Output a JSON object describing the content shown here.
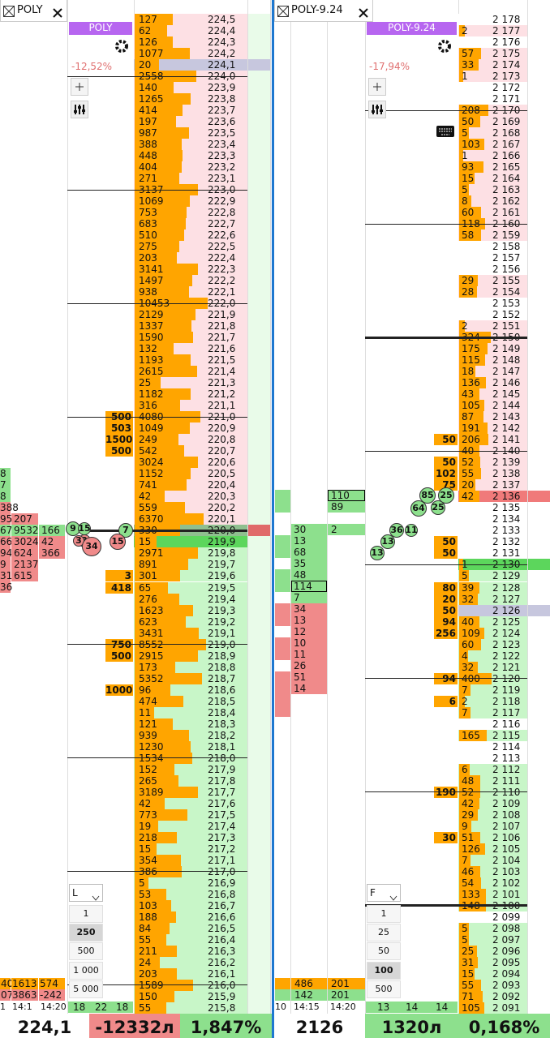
{
  "tabs": [
    "POLY",
    "POLY-9.24"
  ],
  "left": {
    "symbol": "POLY",
    "change": "-12,52%",
    "mode": "L",
    "quantities": [
      "1",
      "250",
      "500",
      "1 000",
      "5 000"
    ],
    "asks": [
      [
        "224,5",
        127,
        null
      ],
      [
        "224,4",
        62,
        null
      ],
      [
        "224,3",
        126,
        null
      ],
      [
        "224,2",
        1077,
        null
      ],
      [
        "224,1",
        20,
        null
      ],
      [
        "224,0",
        2558,
        null
      ],
      [
        "223,9",
        140,
        null
      ],
      [
        "223,8",
        1265,
        null
      ],
      [
        "223,7",
        414,
        null
      ],
      [
        "223,6",
        197,
        null
      ],
      [
        "223,5",
        987,
        null
      ],
      [
        "223,4",
        388,
        null
      ],
      [
        "223,3",
        448,
        null
      ],
      [
        "223,2",
        404,
        null
      ],
      [
        "223,1",
        271,
        null
      ],
      [
        "223,0",
        3137,
        null
      ],
      [
        "222,9",
        1069,
        null
      ],
      [
        "222,8",
        753,
        null
      ],
      [
        "222,7",
        683,
        null
      ],
      [
        "222,6",
        510,
        null
      ],
      [
        "222,5",
        275,
        null
      ],
      [
        "222,4",
        203,
        null
      ],
      [
        "222,3",
        3141,
        null
      ],
      [
        "222,2",
        1497,
        null
      ],
      [
        "222,1",
        938,
        null
      ],
      [
        "222,0",
        10453,
        null
      ],
      [
        "221,9",
        2129,
        null
      ],
      [
        "221,8",
        1337,
        null
      ],
      [
        "221,7",
        1590,
        null
      ],
      [
        "221,6",
        132,
        null
      ],
      [
        "221,5",
        1193,
        null
      ],
      [
        "221,4",
        2615,
        null
      ],
      [
        "221,3",
        25,
        null
      ],
      [
        "221,2",
        1182,
        null
      ],
      [
        "221,1",
        316,
        null
      ],
      [
        "221,0",
        4080,
        500
      ],
      [
        "220,9",
        1049,
        503
      ],
      [
        "220,8",
        249,
        1500
      ],
      [
        "220,7",
        542,
        500
      ],
      [
        "220,6",
        3024,
        null
      ],
      [
        "220,5",
        1152,
        null
      ],
      [
        "220,4",
        741,
        null
      ],
      [
        "220,3",
        42,
        null
      ],
      [
        "220,2",
        559,
        null
      ],
      [
        "220,1",
        6370,
        null
      ],
      [
        "220,0",
        330,
        null
      ]
    ],
    "bids": [
      [
        "219,9",
        15,
        null
      ],
      [
        "219,8",
        2971,
        null
      ],
      [
        "219,7",
        891,
        null
      ],
      [
        "219,6",
        301,
        3
      ],
      [
        "219,5",
        65,
        418
      ],
      [
        "219,4",
        276,
        null
      ],
      [
        "219,3",
        1623,
        null
      ],
      [
        "219,2",
        623,
        null
      ],
      [
        "219,1",
        3431,
        null
      ],
      [
        "219,0",
        8552,
        750
      ],
      [
        "218,9",
        2915,
        500
      ],
      [
        "218,8",
        173,
        null
      ],
      [
        "218,7",
        5352,
        null
      ],
      [
        "218,6",
        96,
        1000
      ],
      [
        "218,5",
        474,
        null
      ],
      [
        "218,4",
        11,
        null
      ],
      [
        "218,3",
        121,
        null
      ],
      [
        "218,2",
        939,
        null
      ],
      [
        "218,1",
        1230,
        null
      ],
      [
        "218,0",
        1534,
        null
      ],
      [
        "217,9",
        152,
        null
      ],
      [
        "217,8",
        265,
        null
      ],
      [
        "217,7",
        3189,
        null
      ],
      [
        "217,6",
        42,
        null
      ],
      [
        "217,5",
        773,
        null
      ],
      [
        "217,4",
        19,
        null
      ],
      [
        "217,3",
        218,
        null
      ],
      [
        "217,2",
        15,
        null
      ],
      [
        "217,1",
        354,
        null
      ],
      [
        "217,0",
        386,
        null
      ],
      [
        "216,9",
        5,
        null
      ],
      [
        "216,8",
        53,
        null
      ],
      [
        "216,7",
        103,
        null
      ],
      [
        "216,6",
        188,
        null
      ],
      [
        "216,5",
        84,
        null
      ],
      [
        "216,4",
        55,
        null
      ],
      [
        "216,3",
        211,
        null
      ],
      [
        "216,2",
        24,
        null
      ],
      [
        "216,1",
        203,
        null
      ],
      [
        "216,0",
        1589,
        null
      ],
      [
        "215,9",
        150,
        null
      ],
      [
        "215,8",
        55,
        null
      ]
    ],
    "cluster": [
      [
        "8"
      ],
      [
        "7"
      ],
      [
        "8"
      ],
      [
        "388"
      ],
      [
        "95",
        "207"
      ],
      [
        "67",
        "9532",
        "166"
      ],
      [
        "66",
        "3024",
        "42"
      ],
      [
        "94",
        "624",
        "366"
      ],
      [
        "9",
        "2137"
      ],
      [
        "31",
        "615"
      ],
      [
        "36"
      ]
    ],
    "bubbles": [
      "9",
      "3",
      "15",
      "7",
      "3",
      "34",
      "15"
    ],
    "totals": [
      [
        "40",
        "1613",
        "574"
      ],
      [
        "07",
        "3863",
        "-242"
      ]
    ],
    "times": [
      "1",
      "14:1",
      "14:20"
    ],
    "counts": [
      "18",
      "22",
      "18"
    ]
  },
  "right": {
    "symbol": "POLY-9.24",
    "change": "-17,94%",
    "mode": "F",
    "quantities": [
      "1",
      "25",
      "50",
      "100",
      "500"
    ],
    "asks": [
      [
        "2 178",
        null,
        null
      ],
      [
        "2 177",
        2,
        null
      ],
      [
        "2 176",
        null,
        null
      ],
      [
        "2 175",
        57,
        null
      ],
      [
        "2 174",
        33,
        null
      ],
      [
        "2 173",
        1,
        null
      ],
      [
        "2 172",
        null,
        null
      ],
      [
        "2 171",
        null,
        null
      ],
      [
        "2 170",
        208,
        null
      ],
      [
        "2 169",
        50,
        null
      ],
      [
        "2 168",
        5,
        null
      ],
      [
        "2 167",
        103,
        null
      ],
      [
        "2 166",
        1,
        null
      ],
      [
        "2 165",
        93,
        null
      ],
      [
        "2 164",
        15,
        null
      ],
      [
        "2 163",
        5,
        null
      ],
      [
        "2 162",
        8,
        null
      ],
      [
        "2 161",
        60,
        null
      ],
      [
        "2 160",
        118,
        null
      ],
      [
        "2 159",
        58,
        null
      ],
      [
        "2 158",
        null,
        null
      ],
      [
        "2 157",
        null,
        null
      ],
      [
        "2 156",
        null,
        null
      ],
      [
        "2 155",
        29,
        null
      ],
      [
        "2 154",
        28,
        null
      ],
      [
        "2 153",
        null,
        null
      ],
      [
        "2 152",
        null,
        null
      ],
      [
        "2 151",
        2,
        null
      ],
      [
        "2 150",
        324,
        null
      ],
      [
        "2 149",
        175,
        null
      ],
      [
        "2 148",
        115,
        null
      ],
      [
        "2 147",
        18,
        null
      ],
      [
        "2 146",
        136,
        null
      ],
      [
        "2 145",
        43,
        null
      ],
      [
        "2 144",
        105,
        null
      ],
      [
        "2 143",
        87,
        null
      ],
      [
        "2 142",
        191,
        null
      ],
      [
        "2 141",
        206,
        50
      ],
      [
        "2 140",
        40,
        null
      ],
      [
        "2 139",
        52,
        50
      ],
      [
        "2 138",
        55,
        102
      ],
      [
        "2 137",
        20,
        75
      ],
      [
        "2 136",
        42,
        null
      ],
      [
        "2 135",
        null,
        null
      ],
      [
        "2 134",
        null,
        null
      ],
      [
        "2 133",
        null,
        null
      ],
      [
        "2 132",
        null,
        50
      ],
      [
        "2 131",
        null,
        50
      ]
    ],
    "bids": [
      [
        "2 130",
        1,
        null
      ],
      [
        "2 129",
        5,
        null
      ],
      [
        "2 128",
        39,
        80
      ],
      [
        "2 127",
        32,
        20
      ],
      [
        "2 126",
        null,
        50
      ],
      [
        "2 125",
        40,
        94
      ],
      [
        "2 124",
        109,
        256
      ],
      [
        "2 123",
        60,
        null
      ],
      [
        "2 122",
        4,
        null
      ],
      [
        "2 121",
        32,
        null
      ],
      [
        "2 120",
        400,
        94
      ],
      [
        "2 119",
        7,
        null
      ],
      [
        "2 118",
        2,
        6
      ],
      [
        "2 117",
        7,
        null
      ],
      [
        "2 116",
        null,
        null
      ],
      [
        "2 115",
        165,
        null
      ],
      [
        "2 114",
        null,
        null
      ],
      [
        "2 113",
        null,
        null
      ],
      [
        "2 112",
        6,
        null
      ],
      [
        "2 111",
        48,
        null
      ],
      [
        "2 110",
        52,
        190
      ],
      [
        "2 109",
        42,
        null
      ],
      [
        "2 108",
        29,
        null
      ],
      [
        "2 107",
        9,
        null
      ],
      [
        "2 106",
        51,
        30
      ],
      [
        "2 105",
        126,
        null
      ],
      [
        "2 104",
        7,
        null
      ],
      [
        "2 103",
        46,
        null
      ],
      [
        "2 102",
        54,
        null
      ],
      [
        "2 101",
        133,
        null
      ],
      [
        "2 100",
        148,
        null
      ],
      [
        "2 099",
        null,
        null
      ],
      [
        "2 098",
        5,
        null
      ],
      [
        "2 097",
        5,
        null
      ],
      [
        "2 096",
        25,
        null
      ],
      [
        "2 095",
        31,
        null
      ],
      [
        "2 094",
        15,
        null
      ],
      [
        "2 093",
        55,
        null
      ],
      [
        "2 092",
        71,
        null
      ],
      [
        "2 091",
        105,
        null
      ]
    ],
    "trades": [
      "110",
      "89",
      "2"
    ],
    "volumes": [
      "30",
      "13",
      "68",
      "35",
      "48",
      "114",
      "7",
      "34",
      "13",
      "12",
      "10",
      "11",
      "26",
      "51",
      "14"
    ],
    "bubbles": [
      "13",
      "13",
      "36",
      "11",
      "64",
      "25",
      "85",
      "25"
    ],
    "totals": [
      [
        "486",
        "201"
      ],
      [
        "142",
        "201"
      ]
    ],
    "times": [
      "10",
      "14:15",
      "14:20"
    ],
    "counts": [
      "13",
      "14",
      "14"
    ]
  },
  "footer": {
    "left": [
      "224,1",
      "-12332л",
      "1,847%"
    ],
    "right": [
      "2126",
      "1320л",
      "0,168%"
    ]
  }
}
